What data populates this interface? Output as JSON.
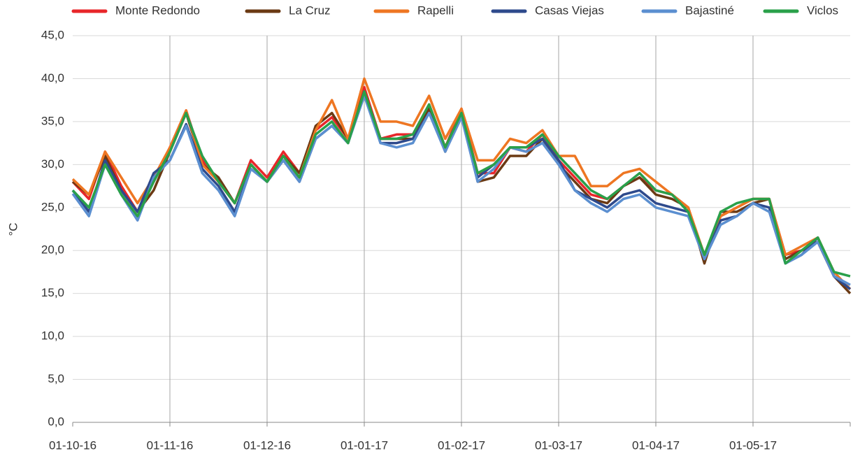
{
  "chart_data": {
    "type": "line",
    "y_label": "°C",
    "categories": [
      "01-10-16",
      null,
      null,
      null,
      null,
      null,
      "01-11-16",
      null,
      null,
      null,
      null,
      null,
      "01-12-16",
      null,
      null,
      null,
      null,
      null,
      "01-01-17",
      null,
      null,
      null,
      null,
      null,
      "01-02-17",
      null,
      null,
      null,
      null,
      null,
      "01-03-17",
      null,
      null,
      null,
      null,
      null,
      "01-04-17",
      null,
      null,
      null,
      null,
      null,
      "01-05-17",
      null,
      null,
      null,
      null,
      null,
      null
    ],
    "ylim": [
      0,
      45
    ],
    "yticks": [
      {
        "value": 0,
        "label": "0,0"
      },
      {
        "value": 5,
        "label": "5,0"
      },
      {
        "value": 10,
        "label": "10,0"
      },
      {
        "value": 15,
        "label": "15,0"
      },
      {
        "value": 20,
        "label": "20,0"
      },
      {
        "value": 25,
        "label": "25,0"
      },
      {
        "value": 30,
        "label": "30,0"
      },
      {
        "value": 35,
        "label": "35,0"
      },
      {
        "value": 40,
        "label": "40,0"
      },
      {
        "value": 45,
        "label": "45,0"
      }
    ],
    "grid": true,
    "legend": "top",
    "series": [
      {
        "name": "Monte Redondo",
        "color": "#e8262a",
        "values": [
          28,
          26,
          31.5,
          27.5,
          24.5,
          28,
          32,
          36.3,
          30.5,
          28,
          25.5,
          30.5,
          28.5,
          31.5,
          29,
          34,
          35.5,
          33,
          39,
          33,
          33.5,
          33.5,
          37,
          32,
          36.5,
          29,
          29,
          32,
          31.5,
          33.5,
          30.5,
          28.5,
          26.5,
          26,
          27.5,
          28.5,
          27,
          26.5,
          25,
          19,
          24,
          25,
          26,
          26,
          19.5,
          20,
          21,
          17,
          15.5
        ]
      },
      {
        "name": "La Cruz",
        "color": "#6b3a14",
        "values": [
          28,
          26.5,
          31,
          27,
          24.5,
          27,
          31.5,
          36,
          30,
          28.5,
          25.5,
          30,
          28,
          31,
          29,
          34.5,
          36,
          33,
          38.5,
          33,
          33,
          33,
          36.5,
          31.5,
          36,
          28,
          28.5,
          31,
          31,
          33,
          30,
          28,
          26,
          25.5,
          27.5,
          28.5,
          26.5,
          26,
          25,
          18.5,
          24.5,
          24.5,
          25.5,
          26,
          19,
          20,
          21,
          17,
          15
        ]
      },
      {
        "name": "Rapelli",
        "color": "#ee7622",
        "values": [
          28.3,
          26.5,
          31.5,
          28.5,
          25.5,
          28.5,
          32,
          36.3,
          30,
          28,
          25.5,
          30,
          28,
          30.5,
          28.5,
          34,
          37.5,
          33,
          40,
          35,
          35,
          34.5,
          38,
          33,
          36.5,
          30.5,
          30.5,
          33,
          32.5,
          34,
          31,
          31,
          27.5,
          27.5,
          29,
          29.5,
          28,
          26.5,
          25,
          19.5,
          24,
          25,
          26,
          26,
          19.5,
          20.5,
          21.5,
          17.5,
          15.5
        ]
      },
      {
        "name": "Casas Viejas",
        "color": "#2e4a8c",
        "values": [
          27,
          24.5,
          30.5,
          27,
          24.5,
          29,
          30.5,
          34.7,
          29.5,
          27.5,
          24.5,
          29.5,
          28,
          30.5,
          28,
          33,
          34.5,
          32.5,
          38.5,
          32.5,
          32.5,
          33,
          36,
          32,
          35.5,
          28.5,
          30,
          32,
          32,
          33,
          30.5,
          27,
          26,
          25,
          26.5,
          27,
          25.5,
          25,
          24.5,
          19,
          23.5,
          24,
          25.5,
          25,
          18.5,
          19.5,
          21.5,
          17,
          15.5
        ]
      },
      {
        "name": "Bajastiné",
        "color": "#5b8fd0",
        "values": [
          26.6,
          24,
          30,
          26.5,
          23.5,
          28.5,
          30.5,
          34.5,
          29,
          27,
          24,
          29.5,
          28,
          30.5,
          28,
          33,
          34.5,
          32.5,
          38,
          32.5,
          32,
          32.5,
          36,
          31.5,
          35.5,
          28,
          29.5,
          32,
          31.5,
          32.5,
          30,
          27,
          25.5,
          24.5,
          26,
          26.5,
          25,
          24.5,
          24,
          19,
          23,
          24,
          25.5,
          24.5,
          18.5,
          19.5,
          21,
          17,
          16
        ]
      },
      {
        "name": "Viclos",
        "color": "#2aa04a",
        "values": [
          27,
          25,
          30,
          26.5,
          24,
          28,
          31.5,
          36,
          31,
          28,
          25.5,
          30,
          28,
          31,
          28.5,
          33.5,
          35,
          32.5,
          38.5,
          33,
          33,
          33.5,
          37,
          32,
          36,
          29,
          30,
          32,
          32,
          33.5,
          31,
          29,
          27,
          26,
          27.5,
          29,
          27,
          26.5,
          24.5,
          19.5,
          24.5,
          25.5,
          26,
          26,
          18.5,
          20,
          21.5,
          17.5,
          17
        ]
      }
    ]
  }
}
